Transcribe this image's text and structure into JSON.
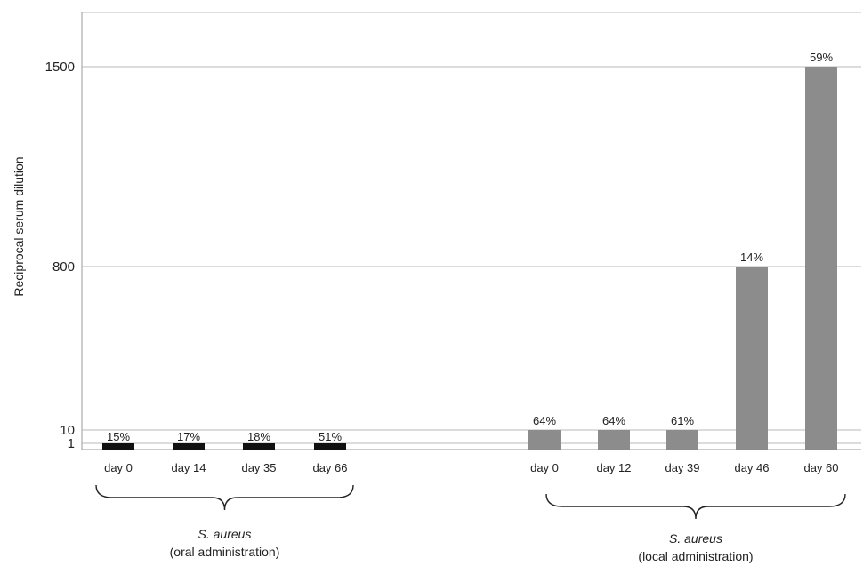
{
  "chart_data": {
    "type": "bar",
    "ylabel": "Reciprocal serum dilution",
    "y_ticks": [
      1,
      10,
      800,
      1500
    ],
    "ylim": [
      0,
      1700
    ],
    "grid": true,
    "groups": [
      {
        "name_italic": "S. aureus",
        "name_detail": "(oral administration)",
        "color": "#111111",
        "categories": [
          "day 0",
          "day 14",
          "day 35",
          "day 66"
        ],
        "values": [
          1,
          1,
          1,
          1
        ],
        "labels": [
          "15%",
          "17%",
          "18%",
          "51%"
        ]
      },
      {
        "name_italic": "S. aureus",
        "name_detail": "(local administration)",
        "color": "#8c8c8c",
        "categories": [
          "day 0",
          "day 12",
          "day 39",
          "day 46",
          "day 60"
        ],
        "values": [
          10,
          10,
          10,
          800,
          1500
        ],
        "labels": [
          "64%",
          "64%",
          "61%",
          "14%",
          "59%"
        ]
      }
    ]
  }
}
